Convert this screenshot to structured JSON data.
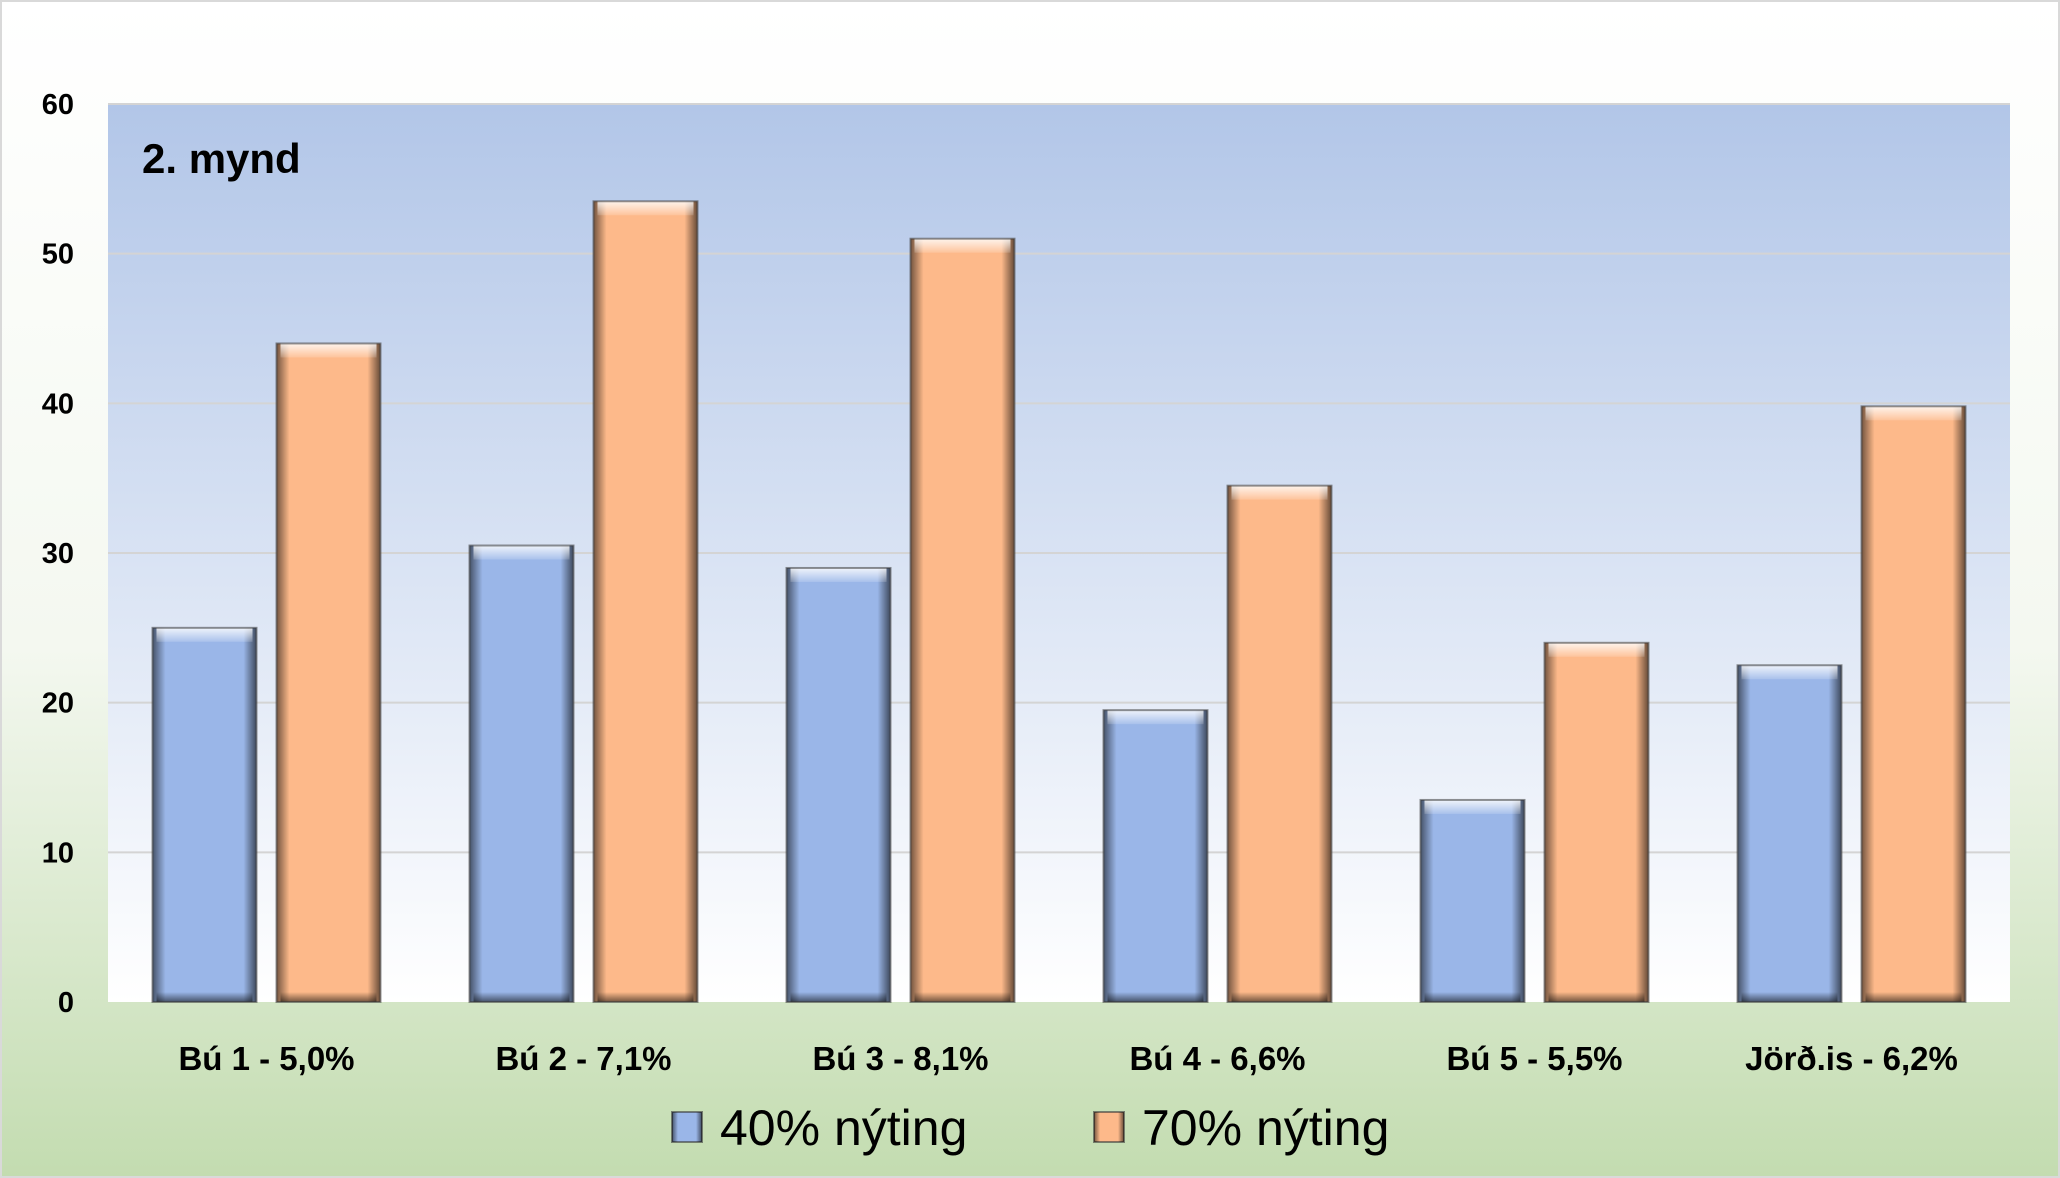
{
  "chart_data": {
    "type": "bar",
    "title": "2. mynd",
    "categories": [
      "Bú 1 - 5,0%",
      "Bú 2 - 7,1%",
      "Bú 3 - 8,1%",
      "Bú 4 - 6,6%",
      "Bú 5 - 5,5%",
      "Jörð.is - 6,2%"
    ],
    "series": [
      {
        "name": "40% nýting",
        "values": [
          25,
          30.5,
          29,
          19.5,
          13.5,
          22.5
        ],
        "color": "#9ab6e8"
      },
      {
        "name": "70% nýting",
        "values": [
          44,
          53.5,
          51,
          34.5,
          24,
          39.8
        ],
        "color": "#fdb98a"
      }
    ],
    "ylim": [
      0,
      60
    ],
    "yticks": [
      "0",
      "10",
      "20",
      "30",
      "40",
      "50",
      "60"
    ],
    "xlabel": "",
    "ylabel": "",
    "grid": true,
    "legend_position": "bottom",
    "colors": {
      "plot_top": "#b2c6e8",
      "plot_bottom": "#ffffff",
      "outer_top": "#ffffff",
      "outer_bottom": "#c3dcb0"
    }
  }
}
